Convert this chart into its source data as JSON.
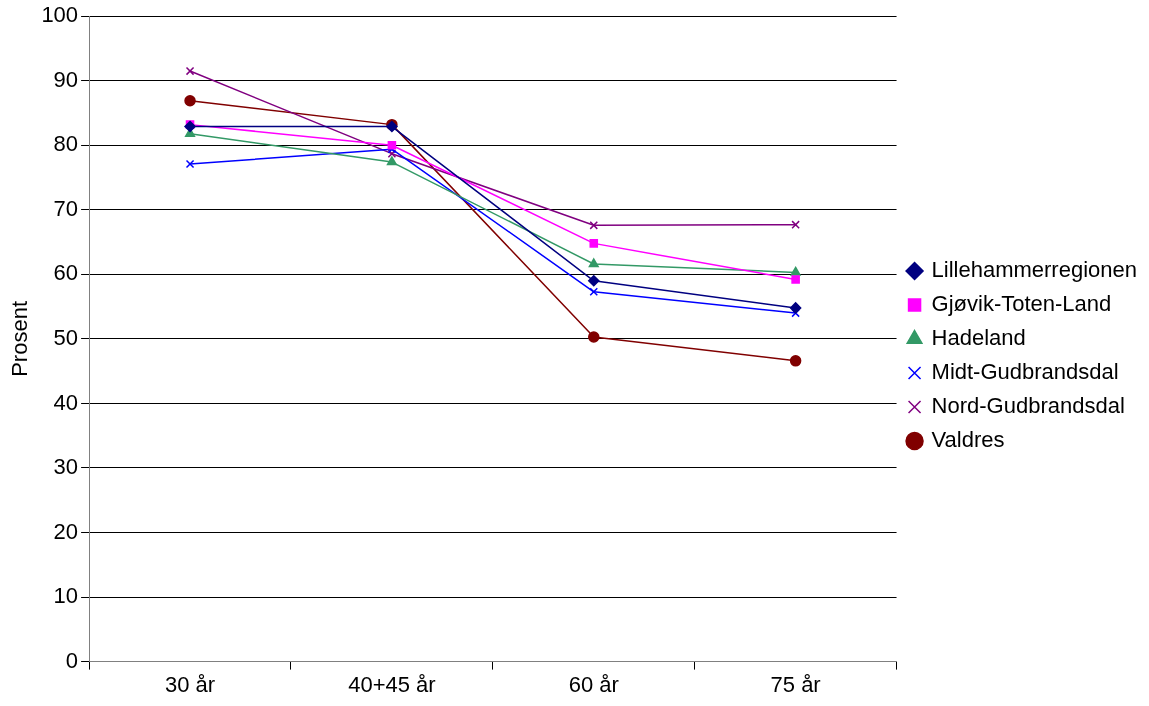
{
  "chart_data": {
    "type": "line",
    "ylabel": "Prosent",
    "categories": [
      "30 år",
      "40+45 år",
      "60 år",
      "75 år"
    ],
    "series": [
      {
        "name": "Lillehammerregionen",
        "color": "#000080",
        "marker": "diamond",
        "values": [
          82.9,
          82.9,
          59.0,
          54.8
        ]
      },
      {
        "name": "Gjøvik-Toten-Land",
        "color": "#ff00ff",
        "marker": "square",
        "values": [
          83.2,
          80.0,
          64.8,
          59.2
        ]
      },
      {
        "name": "Hadeland",
        "color": "#339966",
        "marker": "triangle",
        "values": [
          81.8,
          77.4,
          61.6,
          60.3
        ]
      },
      {
        "name": "Midt-Gudbrandsdal",
        "color": "#0000ff",
        "marker": "cross",
        "values": [
          77.1,
          79.4,
          57.3,
          54.0
        ]
      },
      {
        "name": "Nord-Gudbrandsdal",
        "color": "#800080",
        "marker": "cross",
        "values": [
          91.5,
          78.7,
          67.6,
          67.7
        ]
      },
      {
        "name": "Valdres",
        "color": "#800000",
        "marker": "circle",
        "values": [
          86.9,
          83.2,
          50.3,
          46.6
        ]
      }
    ],
    "ylim": [
      0,
      100
    ],
    "yticks": [
      0,
      10,
      20,
      30,
      40,
      50,
      60,
      70,
      80,
      90,
      100
    ],
    "grid": "y",
    "legend": "right",
    "line_style": "solid"
  }
}
